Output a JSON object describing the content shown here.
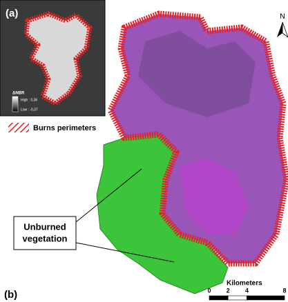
{
  "panel_a": {
    "label": "(a)",
    "legend_title": "ΔNBR",
    "high": "High : 0,36",
    "low": "Low : -0,37"
  },
  "legend": {
    "burns": "Burns perimeters"
  },
  "annotation": {
    "lines": [
      "Unburned",
      "vegetation"
    ]
  },
  "panel_b": {
    "label": "(b)"
  },
  "north": "N",
  "scale": {
    "title": "Kilometers",
    "ticks": [
      0,
      2,
      4,
      8
    ]
  }
}
